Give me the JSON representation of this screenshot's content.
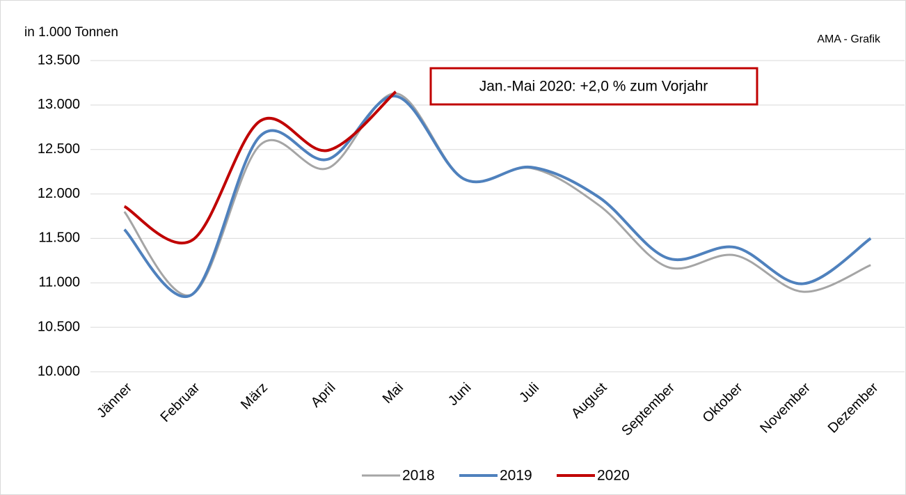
{
  "chart_data": {
    "type": "line",
    "subtitle": "in 1.000 Tonnen",
    "source": "AMA - Grafik",
    "annotation": "Jan.-Mai 2020: +2,0 % zum Vorjahr",
    "categories": [
      "Jänner",
      "Februar",
      "März",
      "April",
      "Mai",
      "Juni",
      "Juli",
      "August",
      "September",
      "Oktober",
      "November",
      "Dezember"
    ],
    "series": [
      {
        "name": "2018",
        "color": "#a5a5a5",
        "values": [
          11800,
          10870,
          12550,
          12290,
          13130,
          12170,
          12290,
          11870,
          11180,
          11310,
          10900,
          11200
        ]
      },
      {
        "name": "2019",
        "color": "#4f81bd",
        "values": [
          11600,
          10870,
          12650,
          12390,
          13100,
          12170,
          12300,
          11960,
          11280,
          11400,
          10990,
          11500
        ]
      },
      {
        "name": "2020",
        "color": "#c00000",
        "values": [
          11860,
          11480,
          12820,
          12490,
          13150,
          null,
          null,
          null,
          null,
          null,
          null,
          null
        ]
      }
    ],
    "ylim": [
      10000,
      13500
    ],
    "yticks": [
      {
        "value": 10000,
        "label": "10.000"
      },
      {
        "value": 10500,
        "label": "10.500"
      },
      {
        "value": 11000,
        "label": "11.000"
      },
      {
        "value": 11500,
        "label": "11.500"
      },
      {
        "value": 12000,
        "label": "12.000"
      },
      {
        "value": 12500,
        "label": "12.500"
      },
      {
        "value": 13000,
        "label": "13.000"
      },
      {
        "value": 13500,
        "label": "13.500"
      }
    ],
    "grid": true,
    "smooth": true,
    "legend": "bottom"
  }
}
